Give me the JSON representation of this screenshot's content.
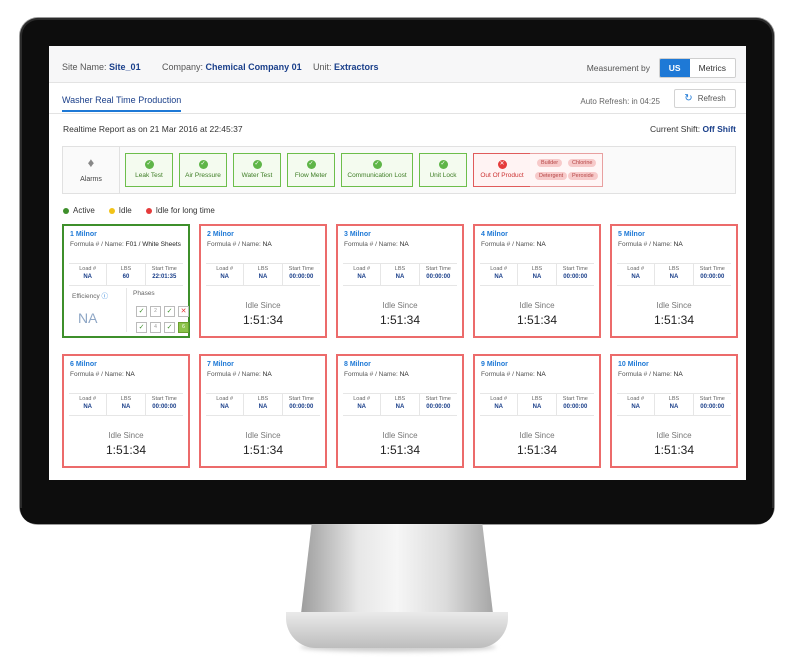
{
  "header": {
    "site_label": "Site Name:",
    "site_value": "Site_01",
    "company_label": "Company:",
    "company_value": "Chemical Company 01",
    "unit_label": "Unit:",
    "unit_value": "Extractors",
    "measurement_label": "Measurement by",
    "measurement_options": [
      "US",
      "Metrics"
    ],
    "measurement_selected": "US"
  },
  "tabs": {
    "active": "Washer Real Time Production"
  },
  "auto_refresh": "Auto Refresh: in 04:25",
  "refresh_label": "Refresh",
  "report": {
    "text": "Realtime Report as on 21 Mar 2016 at 22:45:37"
  },
  "shift": {
    "label": "Current Shift:",
    "value": "Off Shift"
  },
  "alarms": {
    "label": "Alarms",
    "items": [
      "Leak Test",
      "Air Pressure",
      "Water Test",
      "Flow Meter",
      "Communication Lost",
      "Unit Lock",
      "Out Of Product"
    ],
    "chemicals": [
      "Builder",
      "Chlorine",
      "Detergent",
      "Peroxide"
    ]
  },
  "legend": [
    "Active",
    "Idle",
    "Idle for long time"
  ],
  "colors": {
    "active": "#3e8f2b",
    "idle": "#f2c318",
    "idle_long": "#e53b3b",
    "accent": "#1e79d6"
  },
  "card_labels": {
    "formula": "Formula # / Name:",
    "load": "Load #",
    "lbs": "LBS",
    "start": "Start Time",
    "idle_since": "Idle Since",
    "efficiency": "Efficiency",
    "phases": "Phases"
  },
  "machines": [
    {
      "name": "1 Milnor",
      "formula": "F01 / White Sheets",
      "load": "NA",
      "lbs": "60",
      "start": "22:01:35",
      "efficiency": "NA",
      "status": "active"
    },
    {
      "name": "2 Milnor",
      "formula": "NA",
      "load": "NA",
      "lbs": "NA",
      "start": "00:00:00",
      "idle": "1:51:34",
      "status": "idle_long"
    },
    {
      "name": "3 Milnor",
      "formula": "NA",
      "load": "NA",
      "lbs": "NA",
      "start": "00:00:00",
      "idle": "1:51:34",
      "status": "idle_long"
    },
    {
      "name": "4 Milnor",
      "formula": "NA",
      "load": "NA",
      "lbs": "NA",
      "start": "00:00:00",
      "idle": "1:51:34",
      "status": "idle_long"
    },
    {
      "name": "5 Milnor",
      "formula": "NA",
      "load": "NA",
      "lbs": "NA",
      "start": "00:00:00",
      "idle": "1:51:34",
      "status": "idle_long"
    },
    {
      "name": "6 Milnor",
      "formula": "NA",
      "load": "NA",
      "lbs": "NA",
      "start": "00:00:00",
      "idle": "1:51:34",
      "status": "idle_long"
    },
    {
      "name": "7 Milnor",
      "formula": "NA",
      "load": "NA",
      "lbs": "NA",
      "start": "00:00:00",
      "idle": "1:51:34",
      "status": "idle_long"
    },
    {
      "name": "8 Milnor",
      "formula": "NA",
      "load": "NA",
      "lbs": "NA",
      "start": "00:00:00",
      "idle": "1:51:34",
      "status": "idle_long"
    },
    {
      "name": "9 Milnor",
      "formula": "NA",
      "load": "NA",
      "lbs": "NA",
      "start": "00:00:00",
      "idle": "1:51:34",
      "status": "idle_long"
    },
    {
      "name": "10 Milnor",
      "formula": "NA",
      "load": "NA",
      "lbs": "NA",
      "start": "00:00:00",
      "idle": "1:51:34",
      "status": "idle_long"
    }
  ],
  "phases": {
    "numbers": [
      "2",
      "4",
      "6"
    ]
  }
}
